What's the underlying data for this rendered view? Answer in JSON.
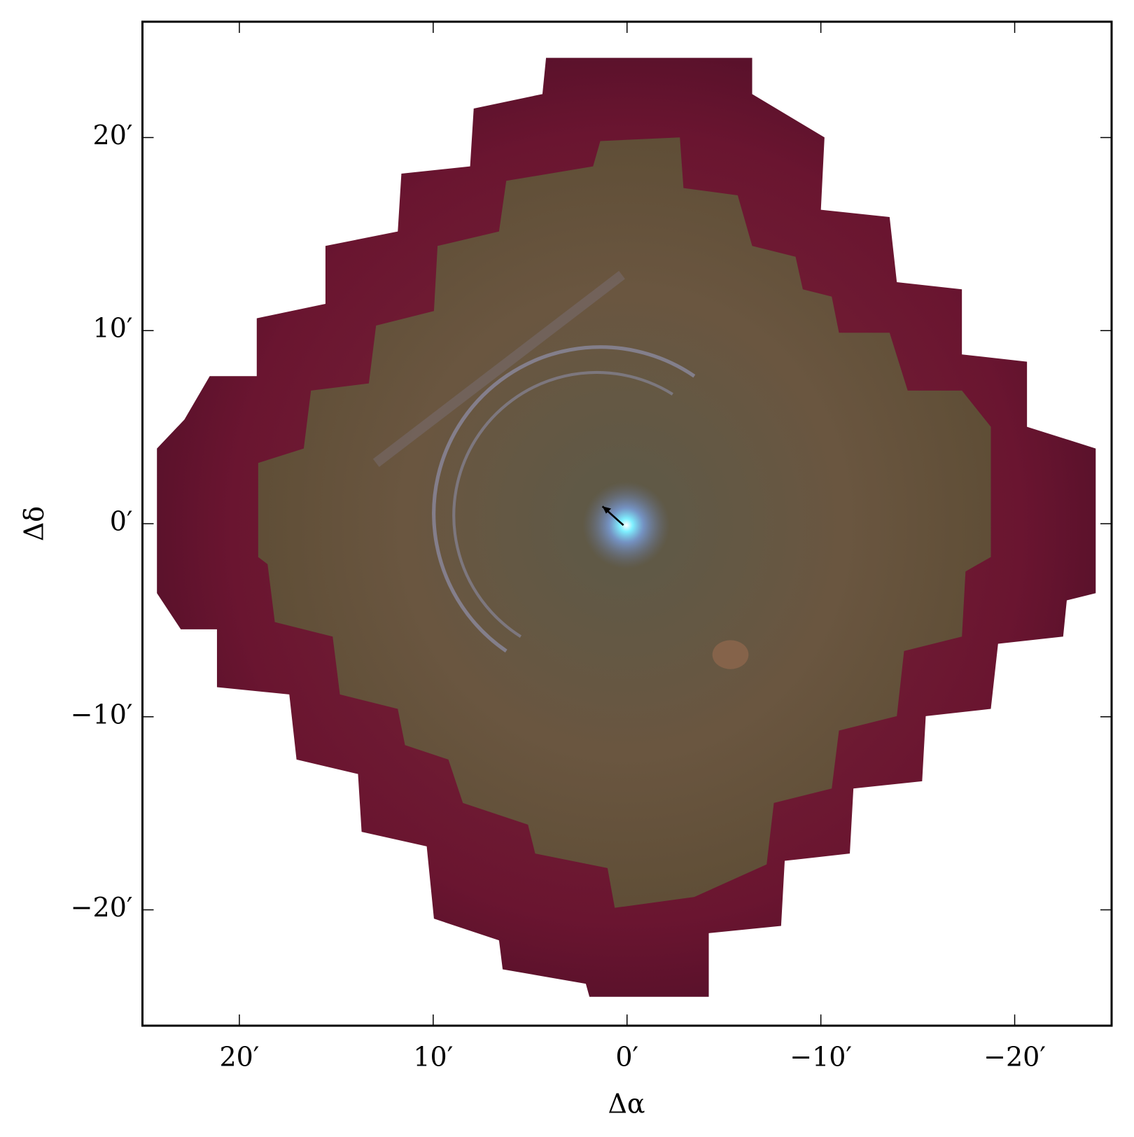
{
  "chart_data": {
    "type": "image",
    "x_label": "Δα",
    "y_label": "Δδ",
    "xlim": [
      25,
      -25
    ],
    "ylim": [
      -26,
      26
    ],
    "xticks": [
      {
        "value": 20,
        "label": "20′"
      },
      {
        "value": 10,
        "label": "10′"
      },
      {
        "value": 0,
        "label": "0′"
      },
      {
        "value": -10,
        "label": "−10′"
      },
      {
        "value": -20,
        "label": "−20′"
      }
    ],
    "yticks": [
      {
        "value": 20,
        "label": "20′"
      },
      {
        "value": 10,
        "label": "10′"
      },
      {
        "value": 0,
        "label": "0′"
      },
      {
        "value": -10,
        "label": "−10′"
      },
      {
        "value": -20,
        "label": "−20′"
      }
    ]
  }
}
